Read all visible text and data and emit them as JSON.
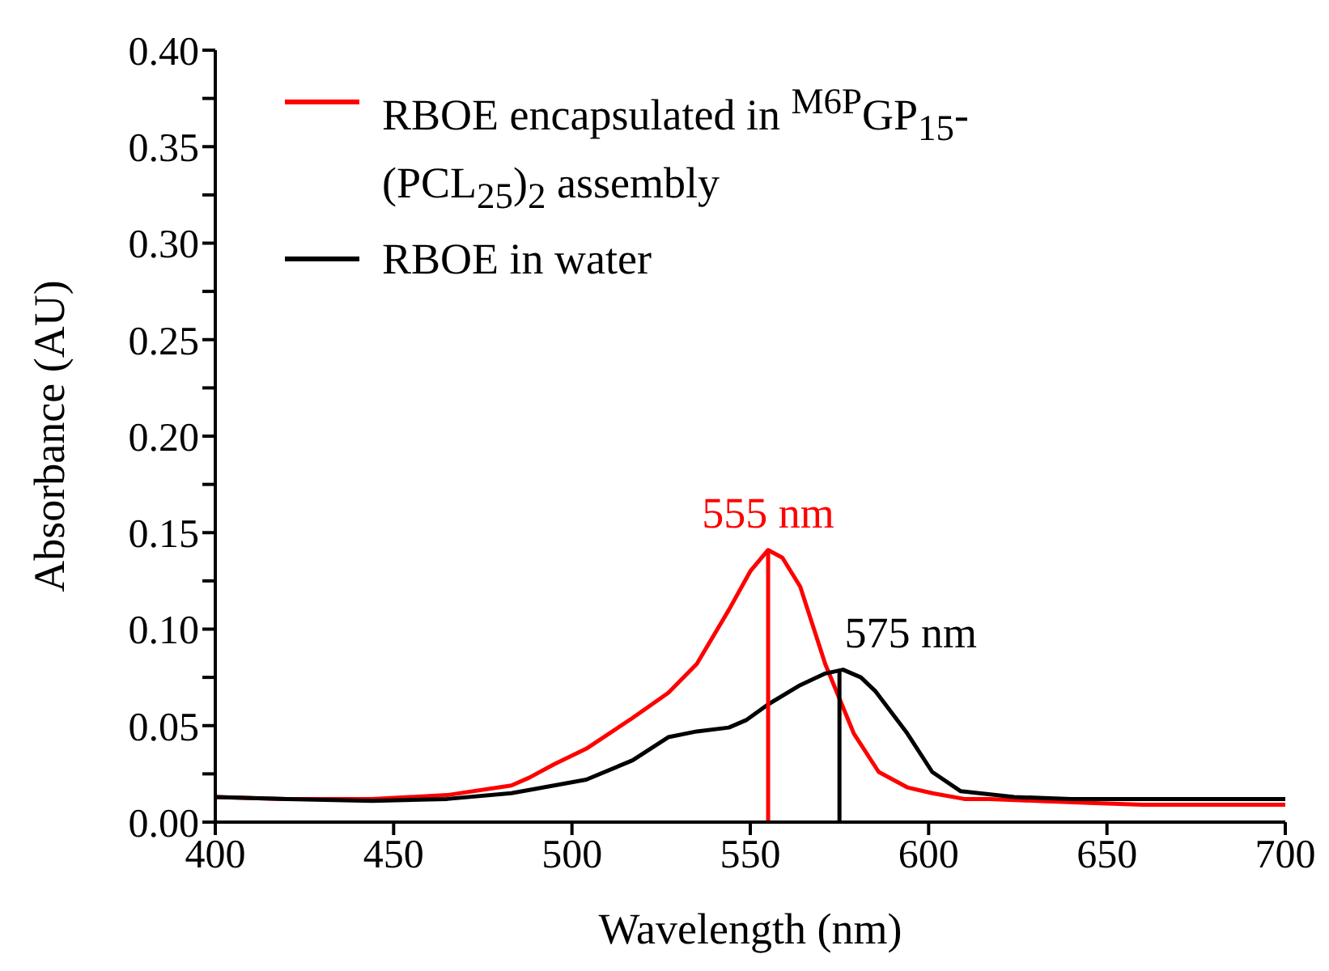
{
  "chart_data": {
    "type": "line",
    "xlabel": "Wavelength (nm)",
    "ylabel": "Absorbance (AU)",
    "xlim": [
      400,
      700
    ],
    "xticks": [
      400,
      450,
      500,
      550,
      600,
      650,
      700
    ],
    "ylim": [
      0,
      0.4
    ],
    "yticks": [
      {
        "value": 0,
        "label": "0.00"
      },
      {
        "value": 0.025,
        "label": null
      },
      {
        "value": 0.05,
        "label": "0.05"
      },
      {
        "value": 0.075,
        "label": null
      },
      {
        "value": 0.1,
        "label": "0.10"
      },
      {
        "value": 0.125,
        "label": null
      },
      {
        "value": 0.15,
        "label": "0.15"
      },
      {
        "value": 0.175,
        "label": null
      },
      {
        "value": 0.2,
        "label": "0.20"
      },
      {
        "value": 0.225,
        "label": null
      },
      {
        "value": 0.25,
        "label": "0.25"
      },
      {
        "value": 0.275,
        "label": null
      },
      {
        "value": 0.3,
        "label": "0.30"
      },
      {
        "value": 0.325,
        "label": null
      },
      {
        "value": 0.35,
        "label": "0.35"
      },
      {
        "value": 0.375,
        "label": null
      },
      {
        "value": 0.4,
        "label": "0.40"
      }
    ],
    "grid": false,
    "legend": "top left",
    "marker": "none",
    "line_style": "solid",
    "series": [
      {
        "name": "RBOE encapsulated in $^{M6P}$GP$_{15}$-(PCL$_{25}$)$_{2}$ assembly",
        "color": "#ff0000",
        "x": [
          400,
          420,
          444,
          465,
          483,
          488,
          495,
          504,
          517,
          527,
          535,
          544,
          550,
          555,
          559,
          564,
          571,
          579,
          586,
          594,
          601,
          610,
          617,
          630,
          645,
          660,
          680,
          700
        ],
        "values": [
          0.013,
          0.012,
          0.012,
          0.014,
          0.019,
          0.023,
          0.03,
          0.038,
          0.054,
          0.067,
          0.082,
          0.11,
          0.13,
          0.141,
          0.137,
          0.122,
          0.082,
          0.046,
          0.026,
          0.018,
          0.015,
          0.012,
          0.012,
          0.011,
          0.01,
          0.009,
          0.009,
          0.009
        ]
      },
      {
        "name": "RBOE in water",
        "color": "#000000",
        "x": [
          400,
          420,
          444,
          465,
          483,
          489,
          504,
          517,
          527,
          535,
          544,
          549,
          555,
          564,
          571,
          576,
          581,
          585,
          594,
          601,
          609,
          624,
          640,
          660,
          680,
          700
        ],
        "values": [
          0.013,
          0.012,
          0.011,
          0.012,
          0.015,
          0.017,
          0.022,
          0.032,
          0.044,
          0.047,
          0.049,
          0.053,
          0.061,
          0.071,
          0.077,
          0.079,
          0.075,
          0.068,
          0.046,
          0.026,
          0.016,
          0.013,
          0.012,
          0.012,
          0.012,
          0.012
        ]
      },
      {
        "color": "#ff0000",
        "x": [
          555,
          555
        ],
        "values": [
          0,
          0.141
        ]
      },
      {
        "color": "#000000",
        "x": [
          575,
          575
        ],
        "values": [
          0,
          0.079
        ]
      }
    ],
    "annotations": [
      {
        "text": "555 nm",
        "x": 555,
        "y": 0.141
      },
      {
        "text": "575 nm",
        "x": 575,
        "y": 0.079
      }
    ]
  }
}
